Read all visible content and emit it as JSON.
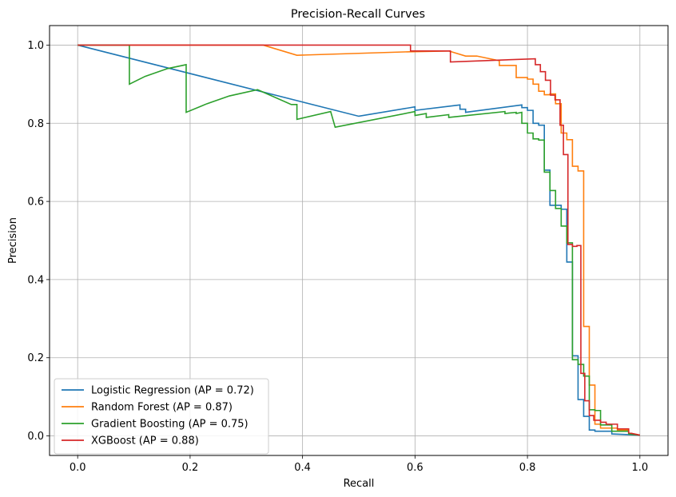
{
  "chart_data": {
    "type": "line",
    "title": "Precision-Recall Curves",
    "xlabel": "Recall",
    "ylabel": "Precision",
    "xlim": [
      -0.05,
      1.05
    ],
    "ylim": [
      -0.05,
      1.05
    ],
    "xticks": [
      0.0,
      0.2,
      0.4,
      0.6,
      0.8,
      1.0
    ],
    "yticks": [
      0.0,
      0.2,
      0.4,
      0.6,
      0.8,
      1.0
    ],
    "xtick_labels": [
      "0.0",
      "0.2",
      "0.4",
      "0.6",
      "0.8",
      "1.0"
    ],
    "ytick_labels": [
      "0.0",
      "0.2",
      "0.4",
      "0.6",
      "0.8",
      "1.0"
    ],
    "grid": true,
    "legend_position": "lower-left",
    "series": [
      {
        "name": "Logistic Regression (AP = 0.72)",
        "color": "#1f77b4",
        "x": [
          0.0,
          0.5,
          0.6,
          0.6,
          0.68,
          0.68,
          0.69,
          0.69,
          0.79,
          0.79,
          0.8,
          0.8,
          0.81,
          0.81,
          0.82,
          0.82,
          0.83,
          0.83,
          0.84,
          0.84,
          0.85,
          0.85,
          0.86,
          0.86,
          0.87,
          0.87,
          0.88,
          0.88,
          0.89,
          0.89,
          0.9,
          0.9,
          0.91,
          0.91,
          0.92,
          0.92,
          0.95,
          0.95,
          1.0
        ],
        "y": [
          1.0,
          0.818,
          0.842,
          0.833,
          0.847,
          0.836,
          0.836,
          0.828,
          0.847,
          0.84,
          0.84,
          0.833,
          0.833,
          0.8,
          0.8,
          0.795,
          0.795,
          0.68,
          0.68,
          0.59,
          0.59,
          0.59,
          0.59,
          0.58,
          0.58,
          0.445,
          0.445,
          0.205,
          0.205,
          0.093,
          0.093,
          0.05,
          0.05,
          0.015,
          0.015,
          0.012,
          0.012,
          0.005,
          0.002
        ]
      },
      {
        "name": "Random Forest (AP = 0.87)",
        "color": "#ff7f0e",
        "x": [
          0.0,
          0.33,
          0.39,
          0.59,
          0.66,
          0.66,
          0.69,
          0.71,
          0.75,
          0.75,
          0.78,
          0.78,
          0.8,
          0.8,
          0.81,
          0.81,
          0.82,
          0.82,
          0.83,
          0.83,
          0.84,
          0.84,
          0.85,
          0.85,
          0.86,
          0.86,
          0.87,
          0.87,
          0.88,
          0.88,
          0.89,
          0.89,
          0.9,
          0.9,
          0.91,
          0.91,
          0.92,
          0.92,
          0.93,
          0.93,
          0.96,
          0.96,
          0.98,
          0.98,
          1.0
        ],
        "y": [
          1.0,
          1.0,
          0.974,
          0.983,
          0.985,
          0.985,
          0.972,
          0.972,
          0.96,
          0.948,
          0.948,
          0.917,
          0.917,
          0.913,
          0.913,
          0.9,
          0.9,
          0.882,
          0.882,
          0.873,
          0.873,
          0.875,
          0.875,
          0.85,
          0.85,
          0.775,
          0.775,
          0.758,
          0.758,
          0.69,
          0.69,
          0.678,
          0.678,
          0.28,
          0.28,
          0.13,
          0.13,
          0.03,
          0.03,
          0.02,
          0.02,
          0.015,
          0.015,
          0.008,
          0.002
        ]
      },
      {
        "name": "Gradient Boosting (AP = 0.75)",
        "color": "#2ca02c",
        "x": [
          0.0,
          0.092,
          0.092,
          0.12,
          0.16,
          0.193,
          0.193,
          0.23,
          0.27,
          0.32,
          0.38,
          0.39,
          0.39,
          0.45,
          0.458,
          0.6,
          0.6,
          0.62,
          0.62,
          0.66,
          0.66,
          0.76,
          0.76,
          0.78,
          0.78,
          0.79,
          0.79,
          0.8,
          0.8,
          0.81,
          0.81,
          0.82,
          0.82,
          0.83,
          0.83,
          0.84,
          0.84,
          0.85,
          0.85,
          0.86,
          0.86,
          0.87,
          0.87,
          0.88,
          0.88,
          0.89,
          0.89,
          0.9,
          0.9,
          0.91,
          0.91,
          0.92,
          0.92,
          0.93,
          0.93,
          0.95,
          0.95,
          0.98,
          0.98,
          1.0
        ],
        "y": [
          1.0,
          1.0,
          0.9,
          0.92,
          0.94,
          0.95,
          0.828,
          0.85,
          0.87,
          0.886,
          0.848,
          0.848,
          0.81,
          0.83,
          0.79,
          0.83,
          0.82,
          0.825,
          0.815,
          0.822,
          0.815,
          0.83,
          0.825,
          0.828,
          0.825,
          0.828,
          0.8,
          0.8,
          0.775,
          0.775,
          0.76,
          0.76,
          0.757,
          0.757,
          0.675,
          0.675,
          0.628,
          0.628,
          0.582,
          0.582,
          0.537,
          0.537,
          0.494,
          0.494,
          0.195,
          0.195,
          0.183,
          0.183,
          0.153,
          0.153,
          0.067,
          0.067,
          0.065,
          0.065,
          0.028,
          0.028,
          0.012,
          0.012,
          0.005,
          0.002
        ]
      },
      {
        "name": "XGBoost (AP = 0.88)",
        "color": "#d62728",
        "x": [
          0.0,
          0.592,
          0.592,
          0.663,
          0.663,
          0.814,
          0.814,
          0.823,
          0.823,
          0.832,
          0.832,
          0.841,
          0.841,
          0.849,
          0.849,
          0.858,
          0.858,
          0.864,
          0.864,
          0.872,
          0.872,
          0.88,
          0.88,
          0.888,
          0.888,
          0.895,
          0.895,
          0.902,
          0.902,
          0.91,
          0.91,
          0.918,
          0.918,
          0.93,
          0.93,
          0.94,
          0.94,
          0.96,
          0.96,
          0.98,
          0.98,
          1.0
        ],
        "y": [
          1.0,
          1.0,
          0.985,
          0.985,
          0.957,
          0.965,
          0.95,
          0.95,
          0.932,
          0.932,
          0.91,
          0.91,
          0.872,
          0.872,
          0.86,
          0.86,
          0.795,
          0.795,
          0.72,
          0.72,
          0.49,
          0.49,
          0.485,
          0.485,
          0.487,
          0.487,
          0.16,
          0.16,
          0.09,
          0.09,
          0.052,
          0.052,
          0.04,
          0.04,
          0.035,
          0.035,
          0.03,
          0.03,
          0.018,
          0.018,
          0.008,
          0.002
        ]
      }
    ]
  }
}
